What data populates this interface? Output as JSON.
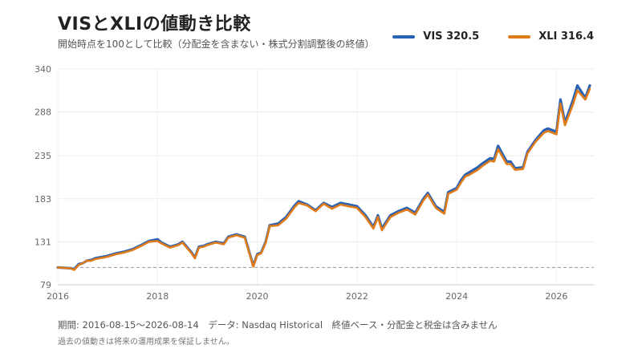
{
  "title": "VISとXLIの値動き比較",
  "subtitle": "開始時点を100として比較（分配金を含まない・株式分割調整後の終値）",
  "legend": [
    {
      "label": "VIS 320.5",
      "color": "#2a62b3"
    },
    {
      "label": "XLI 316.4",
      "color": "#e07b19"
    }
  ],
  "footer": {
    "period": "期間: 2016-08-15〜2026-08-14　データ: Nasdaq Historical　終値ベース・分配金と税金は含みません",
    "disclaimer": "過去の値動きは将来の運用成果を保証しません。"
  },
  "chart_data": {
    "type": "line",
    "title": "VISとXLIの値動き比較",
    "xlabel": "",
    "ylabel": "",
    "xlim": [
      2016.0,
      2026.75
    ],
    "ylim": [
      79,
      340
    ],
    "yticks": [
      79,
      131,
      183,
      235,
      288,
      340
    ],
    "xticks": [
      2016,
      2018,
      2020,
      2022,
      2024,
      2026
    ],
    "baseline": 100,
    "grid": true,
    "legend_position": "top-right",
    "x": [
      2016.0,
      2016.25,
      2016.33,
      2016.42,
      2016.5,
      2016.58,
      2016.67,
      2016.75,
      2016.83,
      2016.92,
      2017.0,
      2017.17,
      2017.33,
      2017.5,
      2017.67,
      2017.83,
      2018.0,
      2018.08,
      2018.25,
      2018.42,
      2018.5,
      2018.67,
      2018.75,
      2018.83,
      2018.92,
      2019.0,
      2019.17,
      2019.33,
      2019.42,
      2019.58,
      2019.75,
      2019.92,
      2020.0,
      2020.08,
      2020.17,
      2020.25,
      2020.42,
      2020.58,
      2020.75,
      2020.83,
      2021.0,
      2021.17,
      2021.33,
      2021.5,
      2021.67,
      2021.83,
      2022.0,
      2022.17,
      2022.33,
      2022.42,
      2022.5,
      2022.67,
      2022.83,
      2023.0,
      2023.17,
      2023.33,
      2023.42,
      2023.58,
      2023.75,
      2023.83,
      2024.0,
      2024.08,
      2024.17,
      2024.25,
      2024.42,
      2024.5,
      2024.67,
      2024.75,
      2024.83,
      2025.0,
      2025.08,
      2025.17,
      2025.33,
      2025.42,
      2025.58,
      2025.75,
      2025.83,
      2026.0,
      2026.08,
      2026.17,
      2026.33,
      2026.42,
      2026.58,
      2026.67
    ],
    "series": [
      {
        "name": "VIS",
        "values": [
          100,
          99,
          98,
          104,
          105,
          108,
          109,
          111,
          112,
          113,
          114,
          117,
          119,
          122,
          127,
          132,
          134,
          130,
          125,
          128,
          131,
          119,
          112,
          125,
          126,
          128,
          131,
          129,
          137,
          140,
          137,
          102,
          116,
          118,
          131,
          151,
          153,
          161,
          175,
          180,
          176,
          169,
          178,
          173,
          178,
          176,
          174,
          163,
          149,
          163,
          147,
          163,
          168,
          172,
          166,
          183,
          190,
          174,
          167,
          191,
          196,
          205,
          212,
          215,
          221,
          225,
          232,
          231,
          247,
          228,
          228,
          220,
          221,
          240,
          254,
          266,
          268,
          264,
          303,
          275,
          302,
          320,
          305,
          320
        ]
      },
      {
        "name": "XLI",
        "values": [
          100,
          99,
          97,
          103,
          105,
          108,
          108,
          110,
          111,
          112,
          113,
          116,
          118,
          121,
          126,
          131,
          132,
          129,
          124,
          127,
          130,
          118,
          111,
          124,
          125,
          127,
          130,
          128,
          136,
          139,
          136,
          101,
          115,
          117,
          130,
          150,
          151,
          159,
          173,
          178,
          175,
          168,
          177,
          171,
          176,
          174,
          172,
          161,
          147,
          161,
          145,
          161,
          166,
          170,
          164,
          181,
          188,
          172,
          165,
          189,
          194,
          202,
          210,
          212,
          218,
          222,
          229,
          228,
          243,
          225,
          225,
          218,
          219,
          238,
          252,
          263,
          265,
          261,
          298,
          272,
          297,
          314,
          303,
          316
        ]
      }
    ]
  }
}
